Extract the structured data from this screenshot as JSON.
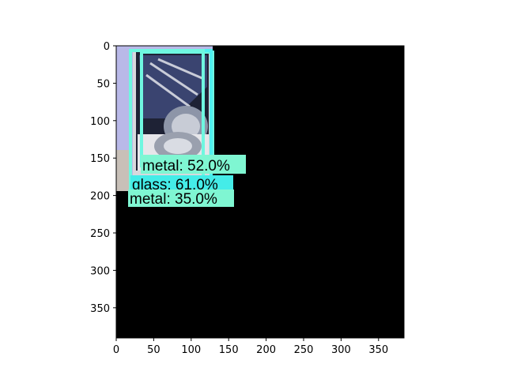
{
  "plot": {
    "x_ticks": [
      "0",
      "50",
      "100",
      "150",
      "200",
      "250",
      "300",
      "350"
    ],
    "y_ticks": [
      "0",
      "50",
      "100",
      "150",
      "200",
      "250",
      "300",
      "350"
    ]
  },
  "detections": [
    {
      "label": "metal: 52.0%",
      "box_color": "#6ff7e0",
      "label_bg": "#7ff6d2"
    },
    {
      "label": "glass: 61.0%",
      "box_color": "#4ff0f0",
      "label_bg": "#44ece8"
    },
    {
      "label": "metal: 35.0%",
      "box_color": "#6ff7e0",
      "label_bg": "#7ff6d2"
    }
  ],
  "colors": {
    "image_background": "#000000",
    "photo_wall": "#b9b9e8",
    "photo_floor": "#c8c8d6",
    "can_body": "#2a3350",
    "can_rim": "#9aa0ae"
  }
}
